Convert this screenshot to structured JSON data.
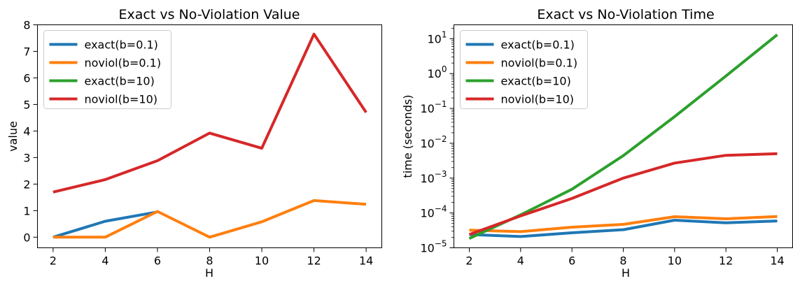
{
  "colors": {
    "exact(b=0.1)": "#1f77b4",
    "noviol(b=0.1)": "#ff7f0e",
    "exact(b=10)": "#2ca02c",
    "noviol(b=10)": "#d62728"
  },
  "chart_data": [
    {
      "type": "line",
      "title": "Exact vs No-Violation Value",
      "xlabel": "H",
      "ylabel": "value",
      "x": [
        2,
        4,
        6,
        8,
        10,
        12,
        14
      ],
      "xlim": [
        1.4,
        14.6
      ],
      "ylim": [
        -0.4,
        8
      ],
      "xticks": [
        "2",
        "4",
        "6",
        "8",
        "10",
        "12",
        "14"
      ],
      "yticks": [
        "0",
        "1",
        "2",
        "3",
        "4",
        "5",
        "6",
        "7",
        "8"
      ],
      "legend": "top-left",
      "series": [
        {
          "name": "exact(b=0.1)",
          "x": [
            2,
            4,
            6
          ],
          "values": [
            0.0,
            0.6,
            0.95
          ]
        },
        {
          "name": "noviol(b=0.1)",
          "x": [
            2,
            4,
            6,
            8,
            10,
            12,
            14
          ],
          "values": [
            0.0,
            0.0,
            0.97,
            0.0,
            0.58,
            1.38,
            1.24
          ]
        },
        {
          "name": "exact(b=10)",
          "x": [],
          "values": []
        },
        {
          "name": "noviol(b=10)",
          "x": [
            2,
            4,
            6,
            8,
            10,
            12,
            14
          ],
          "values": [
            1.7,
            2.17,
            2.88,
            3.92,
            3.35,
            7.65,
            4.7
          ]
        }
      ]
    },
    {
      "type": "line",
      "title": "Exact vs No-Violation Time",
      "xlabel": "H",
      "ylabel": "time (seconds)",
      "yscale": "log",
      "x": [
        2,
        4,
        6,
        8,
        10,
        12,
        14
      ],
      "xlim": [
        1.4,
        14.6
      ],
      "ylim": [
        1e-05,
        25
      ],
      "xticks": [
        "2",
        "4",
        "6",
        "8",
        "10",
        "12",
        "14"
      ],
      "yticks": [
        {
          "base": "10",
          "exp": "−5"
        },
        {
          "base": "10",
          "exp": "−4"
        },
        {
          "base": "10",
          "exp": "−3"
        },
        {
          "base": "10",
          "exp": "−2"
        },
        {
          "base": "10",
          "exp": "−1"
        },
        {
          "base": "10",
          "exp": "0"
        },
        {
          "base": "10",
          "exp": "1"
        }
      ],
      "legend": "top-left",
      "series": [
        {
          "name": "exact(b=0.1)",
          "x": [
            2,
            4,
            6,
            8,
            10,
            12,
            14
          ],
          "values": [
            2.4e-05,
            2.1e-05,
            2.7e-05,
            3.3e-05,
            6.2e-05,
            5.2e-05,
            5.9e-05
          ]
        },
        {
          "name": "noviol(b=0.1)",
          "x": [
            2,
            4,
            6,
            8,
            10,
            12,
            14
          ],
          "values": [
            3.2e-05,
            2.9e-05,
            3.9e-05,
            4.7e-05,
            7.8e-05,
            6.8e-05,
            7.9e-05
          ]
        },
        {
          "name": "exact(b=10)",
          "x": [
            2,
            4,
            6,
            8,
            10,
            12,
            14
          ],
          "values": [
            1.85e-05,
            8.8e-05,
            0.00048,
            0.0044,
            0.058,
            0.85,
            13
          ]
        },
        {
          "name": "noviol(b=10)",
          "x": [
            2,
            4,
            6,
            8,
            10,
            12,
            14
          ],
          "values": [
            2.4e-05,
            8.2e-05,
            0.00026,
            0.001,
            0.0027,
            0.0045,
            0.005
          ]
        }
      ]
    }
  ]
}
